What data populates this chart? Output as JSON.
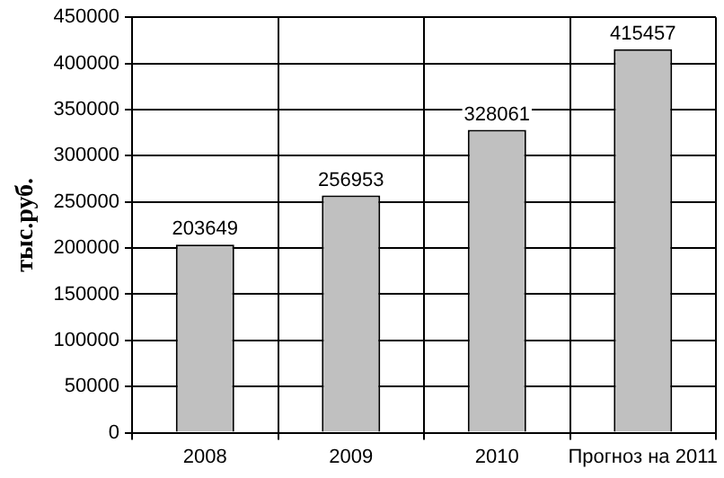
{
  "chart_data": {
    "type": "bar",
    "ylabel": "тыс.руб.",
    "categories": [
      "2008",
      "2009",
      "2010",
      "Прогноз на 2011"
    ],
    "values": [
      203649,
      256953,
      328061,
      415457
    ],
    "color": "#c0c0c0",
    "ylim": [
      0,
      450000
    ],
    "yticks": [
      0,
      50000,
      100000,
      150000,
      200000,
      250000,
      300000,
      350000,
      400000,
      450000
    ],
    "grid": true,
    "data_labels": true,
    "legend": false
  }
}
